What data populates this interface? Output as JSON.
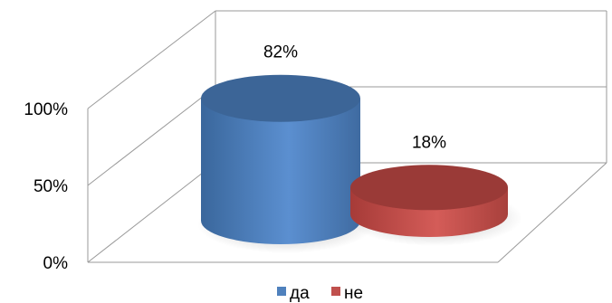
{
  "chart_data": {
    "type": "bar",
    "style": "3d-cylinder",
    "categories": [
      "да",
      "не"
    ],
    "values": [
      82,
      18
    ],
    "value_format": "percent",
    "data_labels": [
      "82%",
      "18%"
    ],
    "yticks": [
      0,
      50,
      100
    ],
    "ytick_labels": [
      "0%",
      "50%",
      "100%"
    ],
    "ylim": [
      0,
      100
    ],
    "grid": true,
    "legend": {
      "placement": "bottom",
      "entries": [
        {
          "label": "да",
          "color": "#4F81BD"
        },
        {
          "label": "не",
          "color": "#C0504D"
        }
      ]
    },
    "colors": {
      "series1_front": "#4F81BD",
      "series1_top": "#3C6597",
      "series2_front": "#C0504D",
      "series2_top": "#9A3A37",
      "wall_line": "#9a9a9a"
    }
  }
}
